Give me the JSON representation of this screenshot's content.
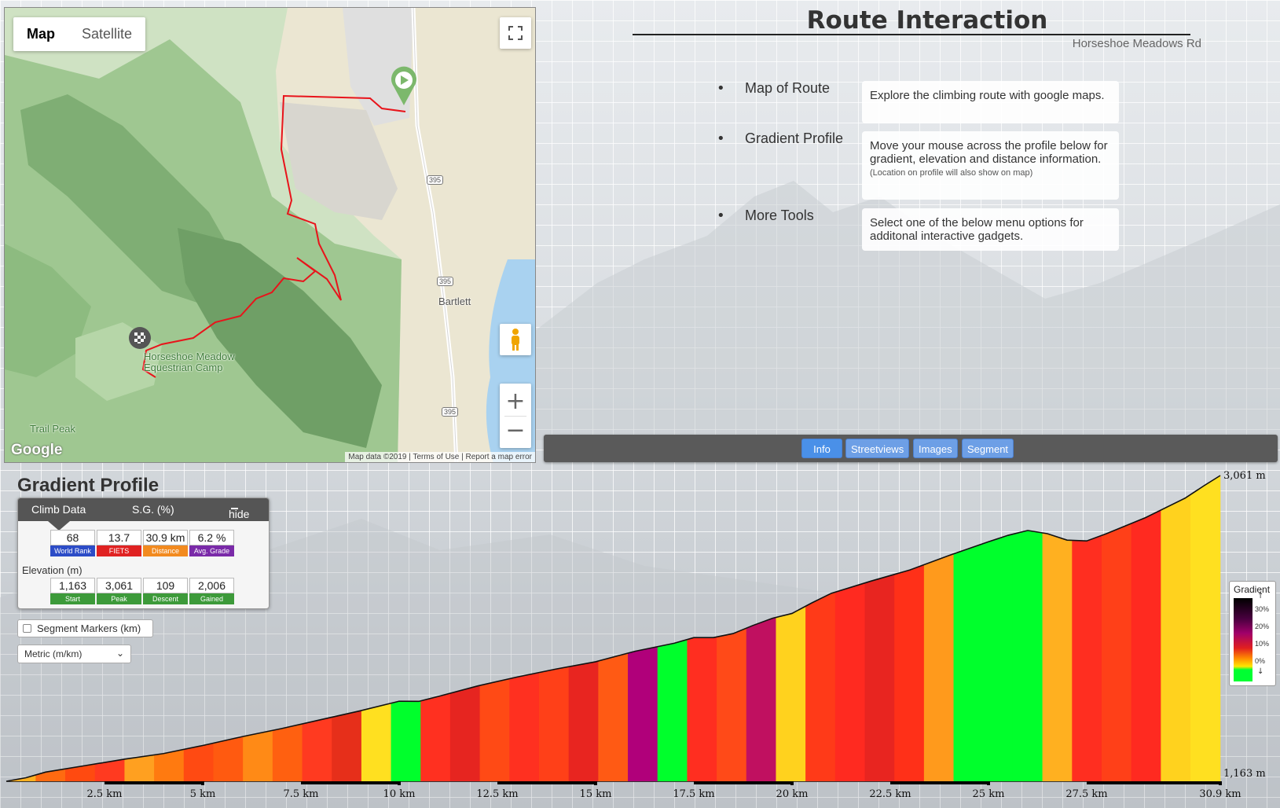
{
  "map": {
    "tabs": [
      "Map",
      "Satellite"
    ],
    "active_tab": "Map",
    "labels": [
      "Bartlett",
      "Horseshoe Meadow\nEquestrian Camp",
      "Trail Peak",
      "395"
    ],
    "attribution": [
      "Map data ©2019",
      "Terms of Use",
      "Report a map error"
    ],
    "logo": "Google",
    "controls": [
      "fullscreen-icon",
      "pegman-icon",
      "zoom-in-icon",
      "zoom-out-icon"
    ]
  },
  "route_interaction": {
    "title": "Route Interaction",
    "subtitle": "Horseshoe Meadows Rd",
    "items": [
      {
        "label": "Map of Route",
        "desc": "Explore the climbing route with google maps.",
        "note": ""
      },
      {
        "label": "Gradient Profile",
        "desc": "Move your mouse across the profile below for gradient, elevation and distance information.",
        "note": "(Location on profile will also show on map)"
      },
      {
        "label": "More Tools",
        "desc": "Select one of the below menu options for additonal interactive gadgets.",
        "note": ""
      }
    ],
    "tabs": [
      "Info",
      "Streetviews",
      "Images",
      "Segment"
    ],
    "active_tab": "Info"
  },
  "gradient_profile": {
    "title": "Gradient Profile",
    "climb_data": {
      "tab": "Climb Data",
      "tab2": "S.G. (%)",
      "hide": "hide",
      "stats": [
        {
          "value": "68",
          "label": "World Rank",
          "color": "#2c4cc7"
        },
        {
          "value": "13.7",
          "label": "FIETS",
          "color": "#e02222"
        },
        {
          "value": "30.9 km",
          "label": "Distance",
          "color": "#f28a1f"
        },
        {
          "value": "6.2 %",
          "label": "Avg. Grade",
          "color": "#7a2aa8"
        }
      ],
      "elevation_label": "Elevation (m)",
      "elevation": [
        {
          "value": "1,163",
          "label": "Start",
          "color": "#3d9a3a"
        },
        {
          "value": "3,061",
          "label": "Peak",
          "color": "#3d9a3a"
        },
        {
          "value": "109",
          "label": "Descent",
          "color": "#3d9a3a"
        },
        {
          "value": "2,006",
          "label": "Gained",
          "color": "#3d9a3a"
        }
      ]
    },
    "segment_markers": "Segment Markers (km)",
    "units_select": "Metric (m/km)",
    "legend": {
      "title": "Gradient",
      "ticks": [
        "30%",
        "20%",
        "10%",
        "0%"
      ]
    }
  },
  "chart_data": {
    "type": "area",
    "x": [
      0,
      0.5,
      1,
      2,
      3,
      4,
      5,
      6,
      7,
      8,
      9,
      10,
      10.5,
      11,
      12,
      13,
      14,
      15,
      16,
      17,
      17.5,
      18,
      18.5,
      19,
      19.5,
      20,
      20.5,
      21,
      22,
      23,
      24,
      25,
      25.5,
      26,
      26.5,
      27,
      27.5,
      28,
      29,
      30,
      30.5,
      30.9
    ],
    "y": [
      1163,
      1185,
      1220,
      1260,
      1300,
      1335,
      1385,
      1440,
      1490,
      1545,
      1600,
      1660,
      1659,
      1690,
      1755,
      1810,
      1860,
      1905,
      1970,
      2020,
      2055,
      2055,
      2080,
      2130,
      2175,
      2205,
      2270,
      2330,
      2405,
      2475,
      2565,
      2650,
      2690,
      2720,
      2700,
      2660,
      2655,
      2700,
      2800,
      2920,
      3000,
      3061
    ],
    "segment_colors": [
      "#ffb020",
      "#ff6a10",
      "#ff4a10",
      "#ff3a20",
      "#ffa020",
      "#ff7a10",
      "#ff4a12",
      "#ff5a10",
      "#ff8a16",
      "#ff6010",
      "#ff3a20",
      "#e62f1a",
      "#ffe020",
      "#00ff2c",
      "#ff3020",
      "#e62520",
      "#ff4a15",
      "#ff3020",
      "#ff4018",
      "#e82520",
      "#ff5a14",
      "#b0007a",
      "#00ff2c",
      "#ff2e20",
      "#ff4a18",
      "#c01060",
      "#ffd21e",
      "#ff3a18",
      "#ff2a20",
      "#e82520",
      "#ff3018",
      "#ff9a1c",
      "#00ff2c",
      "#00ff2c",
      "#00ff2c",
      "#ffb020",
      "#ff2e20",
      "#ff4018",
      "#ff2a20",
      "#ffd21e",
      "#ffe020"
    ],
    "x_tick_labels": [
      "2.5 km",
      "5 km",
      "7.5 km",
      "10 km",
      "12.5 km",
      "15 km",
      "17.5 km",
      "20 km",
      "22.5 km",
      "25 km",
      "27.5 km",
      "30.9 km"
    ],
    "x_ticks": [
      2.5,
      5,
      7.5,
      10,
      12.5,
      15,
      17.5,
      20,
      22.5,
      25,
      27.5,
      30.9
    ],
    "y_labels": [
      "3,061 m",
      "1,163 m"
    ],
    "xlim": [
      0,
      30.9
    ],
    "ylim": [
      1163,
      3061
    ]
  }
}
